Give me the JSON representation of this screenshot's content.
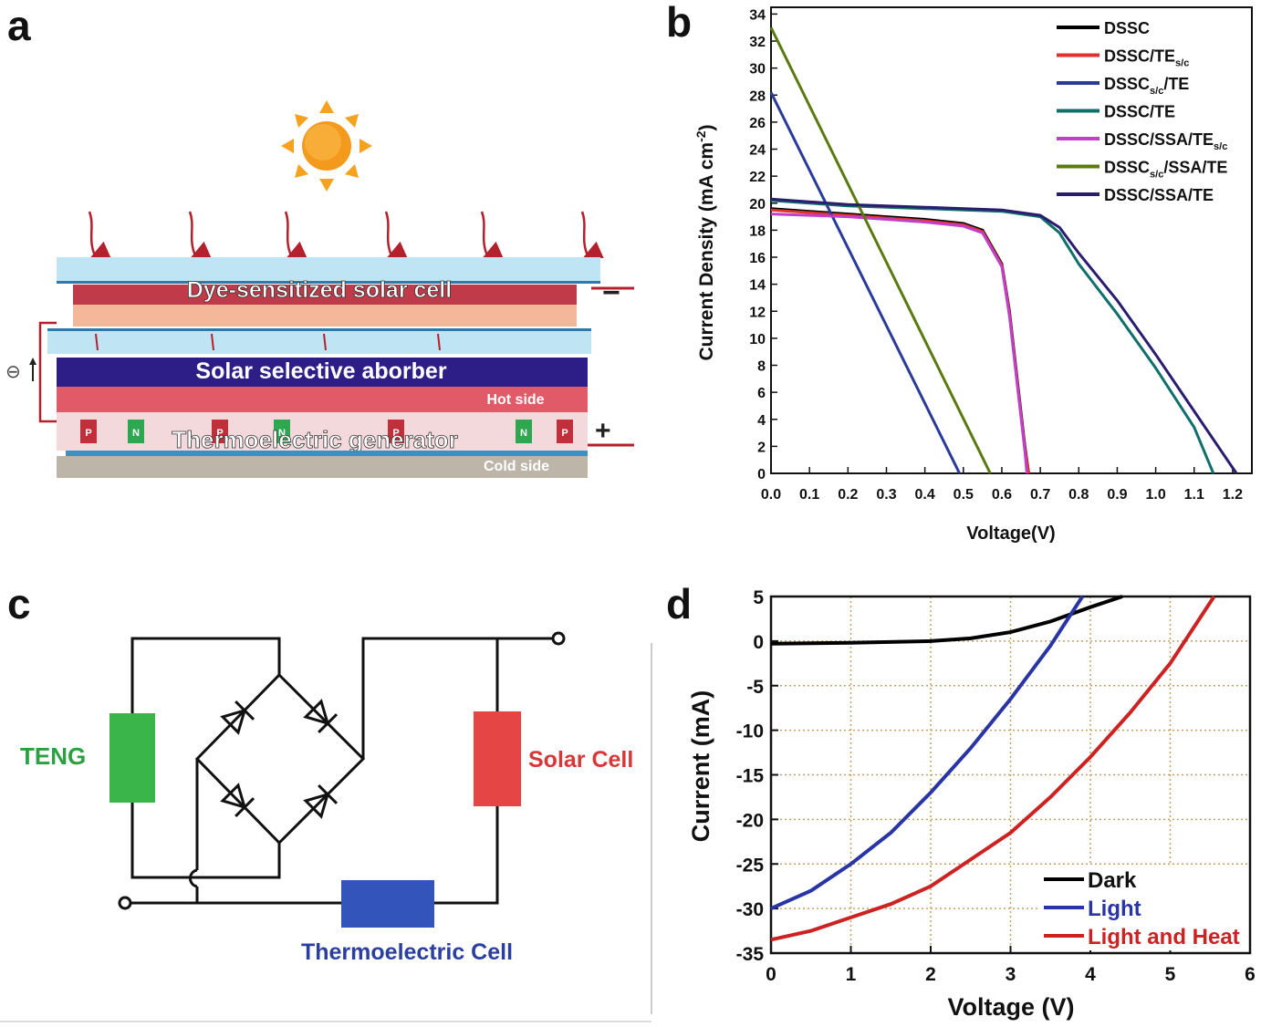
{
  "panels": {
    "a": {
      "letter": "a",
      "layers": {
        "dssc": "Dye-sensitized solar cell",
        "absorber": "Solar selective aborber",
        "teg": "Thermoelectric generator",
        "hot": "Hot side",
        "cold": "Cold side"
      },
      "signs": {
        "minus": "−",
        "plus": "+",
        "electron": "⊖"
      },
      "legs": [
        "P",
        "N",
        "P",
        "N",
        "P",
        "N",
        "P"
      ],
      "colors": {
        "sun": "#f5a21f",
        "glass": "#bfe4f3",
        "dye": "#c03a4a",
        "absorber": "#2c1e86",
        "hot": "#e05a67",
        "cold": "#bdb6a8",
        "arrow": "#b5202d"
      }
    },
    "c": {
      "letter": "c",
      "teng": "TENG",
      "solar": "Solar Cell",
      "te": "Thermoelectric Cell",
      "colors": {
        "teng": "#3ab54a",
        "solar": "#e64545",
        "te": "#3355bb"
      }
    }
  },
  "chart_data": [
    {
      "id": "b",
      "letter": "b",
      "type": "line",
      "xlabel": "Voltage(V)",
      "ylabel_main": "Current Density (mA cm",
      "ylabel_sup": "-2",
      "ylabel_end": ")",
      "xlim": [
        0.0,
        1.25
      ],
      "ylim": [
        0,
        34.5
      ],
      "xticks": [
        0.0,
        0.1,
        0.2,
        0.3,
        0.4,
        0.5,
        0.6,
        0.7,
        0.8,
        0.9,
        1.0,
        1.1,
        1.2
      ],
      "xtick_labels": [
        "0.0",
        "0.1",
        "0.2",
        "0.3",
        "0.4",
        "0.5",
        "0.6",
        "0.7",
        "0.8",
        "0.9",
        "1.0",
        "1.1",
        "1.2"
      ],
      "yticks": [
        0,
        2,
        4,
        6,
        8,
        10,
        12,
        14,
        16,
        18,
        20,
        22,
        24,
        26,
        28,
        30,
        32,
        34
      ],
      "ytick_labels": [
        "0",
        "2",
        "4",
        "6",
        "8",
        "10",
        "12",
        "14",
        "16",
        "18",
        "20",
        "22",
        "24",
        "26",
        "28",
        "30",
        "32",
        "34"
      ],
      "legend_position": "top-right",
      "series": [
        {
          "name": "DSSC",
          "label": {
            "main": "DSSC",
            "sub": "",
            "tail": ""
          },
          "color": "#000000",
          "x": [
            0.0,
            0.1,
            0.2,
            0.3,
            0.4,
            0.5,
            0.55,
            0.6,
            0.62,
            0.64,
            0.66,
            0.67
          ],
          "y": [
            19.6,
            19.4,
            19.2,
            19.0,
            18.8,
            18.5,
            18.0,
            15.5,
            12.0,
            7.0,
            2.0,
            0
          ]
        },
        {
          "name": "DSSC/TEs/c",
          "label": {
            "main": "DSSC/TE",
            "sub": "s/c",
            "tail": ""
          },
          "color": "#e0312f",
          "x": [
            0.0,
            0.1,
            0.2,
            0.3,
            0.4,
            0.5,
            0.55,
            0.6,
            0.62,
            0.64,
            0.66,
            0.67
          ],
          "y": [
            19.5,
            19.3,
            19.1,
            18.9,
            18.7,
            18.4,
            17.9,
            15.4,
            11.8,
            6.8,
            1.8,
            0
          ]
        },
        {
          "name": "DSSCs/c/TE",
          "label": {
            "main": "DSSC",
            "sub": "s/c",
            "tail": "/TE"
          },
          "color": "#2a3a9a",
          "x": [
            0.0,
            0.49
          ],
          "y": [
            28.2,
            0
          ]
        },
        {
          "name": "DSSC/TE",
          "label": {
            "main": "DSSC/TE",
            "sub": "",
            "tail": ""
          },
          "color": "#0f6f6a",
          "x": [
            0.0,
            0.2,
            0.4,
            0.6,
            0.7,
            0.75,
            0.8,
            0.9,
            1.0,
            1.1,
            1.15
          ],
          "y": [
            20.2,
            19.8,
            19.6,
            19.4,
            19.0,
            17.8,
            15.5,
            11.8,
            7.8,
            3.4,
            0
          ]
        },
        {
          "name": "DSSC/SSA/TEs/c",
          "label": {
            "main": "DSSC/SSA/TE",
            "sub": "s/c",
            "tail": ""
          },
          "color": "#c040c8",
          "x": [
            0.0,
            0.1,
            0.2,
            0.3,
            0.4,
            0.5,
            0.55,
            0.6,
            0.62,
            0.64,
            0.66,
            0.665
          ],
          "y": [
            19.2,
            19.1,
            19.0,
            18.8,
            18.6,
            18.3,
            17.8,
            15.3,
            11.6,
            6.6,
            1.6,
            0
          ]
        },
        {
          "name": "DSSCs/c/SSA/TE",
          "label": {
            "main": "DSSC",
            "sub": "s/c",
            "tail": "/SSA/TE"
          },
          "color": "#5a7a10",
          "x": [
            0.0,
            0.57
          ],
          "y": [
            33.0,
            0
          ]
        },
        {
          "name": "DSSC/SSA/TE",
          "label": {
            "main": "DSSC/SSA/TE",
            "sub": "",
            "tail": ""
          },
          "color": "#2b1d6e",
          "x": [
            0.0,
            0.2,
            0.4,
            0.6,
            0.7,
            0.75,
            0.8,
            0.9,
            1.0,
            1.1,
            1.21
          ],
          "y": [
            20.3,
            19.9,
            19.7,
            19.5,
            19.1,
            18.2,
            16.3,
            12.8,
            8.8,
            4.6,
            0
          ]
        }
      ]
    },
    {
      "id": "d",
      "letter": "d",
      "type": "line",
      "xlabel": "Voltage (V)",
      "ylabel": "Current (mA)",
      "xlim": [
        0,
        6
      ],
      "ylim": [
        -35,
        5
      ],
      "grid": true,
      "xticks": [
        0,
        1,
        2,
        3,
        4,
        5,
        6
      ],
      "xtick_labels": [
        "0",
        "1",
        "2",
        "3",
        "4",
        "5",
        "6"
      ],
      "yticks": [
        5,
        0,
        -5,
        -10,
        -15,
        -20,
        -25,
        -30,
        -35
      ],
      "ytick_labels": [
        "5",
        "0",
        "-5",
        "-10",
        "-15",
        "-20",
        "-25",
        "-30",
        "-35"
      ],
      "legend_position": "bottom-right",
      "series": [
        {
          "name": "Dark",
          "color": "#000000",
          "x": [
            0,
            1,
            2,
            2.5,
            3,
            3.5,
            4,
            4.4
          ],
          "y": [
            -0.3,
            -0.2,
            0,
            0.3,
            1.0,
            2.2,
            3.8,
            5
          ]
        },
        {
          "name": "Light",
          "color": "#2a35a5",
          "x": [
            0,
            0.5,
            1,
            1.5,
            2,
            2.5,
            3,
            3.5,
            3.9
          ],
          "y": [
            -30,
            -28,
            -25,
            -21.5,
            -17,
            -12,
            -6.5,
            -0.5,
            5
          ]
        },
        {
          "name": "Light and Heat",
          "color": "#cc2222",
          "x": [
            0,
            0.5,
            1,
            1.5,
            2,
            2.5,
            3,
            3.5,
            4,
            4.5,
            5,
            5.55
          ],
          "y": [
            -33.5,
            -32.5,
            -31,
            -29.5,
            -27.5,
            -24.5,
            -21.5,
            -17.5,
            -13,
            -8,
            -2.5,
            5
          ]
        }
      ]
    }
  ]
}
